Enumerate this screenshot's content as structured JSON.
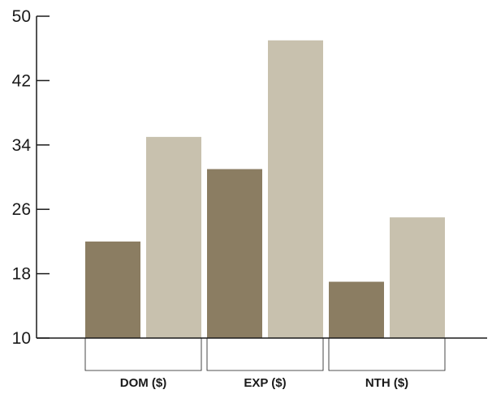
{
  "chart_data": {
    "type": "bar",
    "title": "",
    "xlabel": "",
    "ylabel": "",
    "categories": [
      "DOM ($)",
      "EXP ($)",
      "NTH ($)"
    ],
    "series": [
      {
        "values": [
          22,
          31,
          17
        ],
        "color": "#8b7d62"
      },
      {
        "values": [
          35,
          47,
          25
        ],
        "color": "#c8c1ae"
      }
    ],
    "ylim": [
      10,
      50
    ],
    "yticks": [
      10,
      18,
      26,
      34,
      42,
      50
    ],
    "grid": false,
    "legend": "none"
  }
}
